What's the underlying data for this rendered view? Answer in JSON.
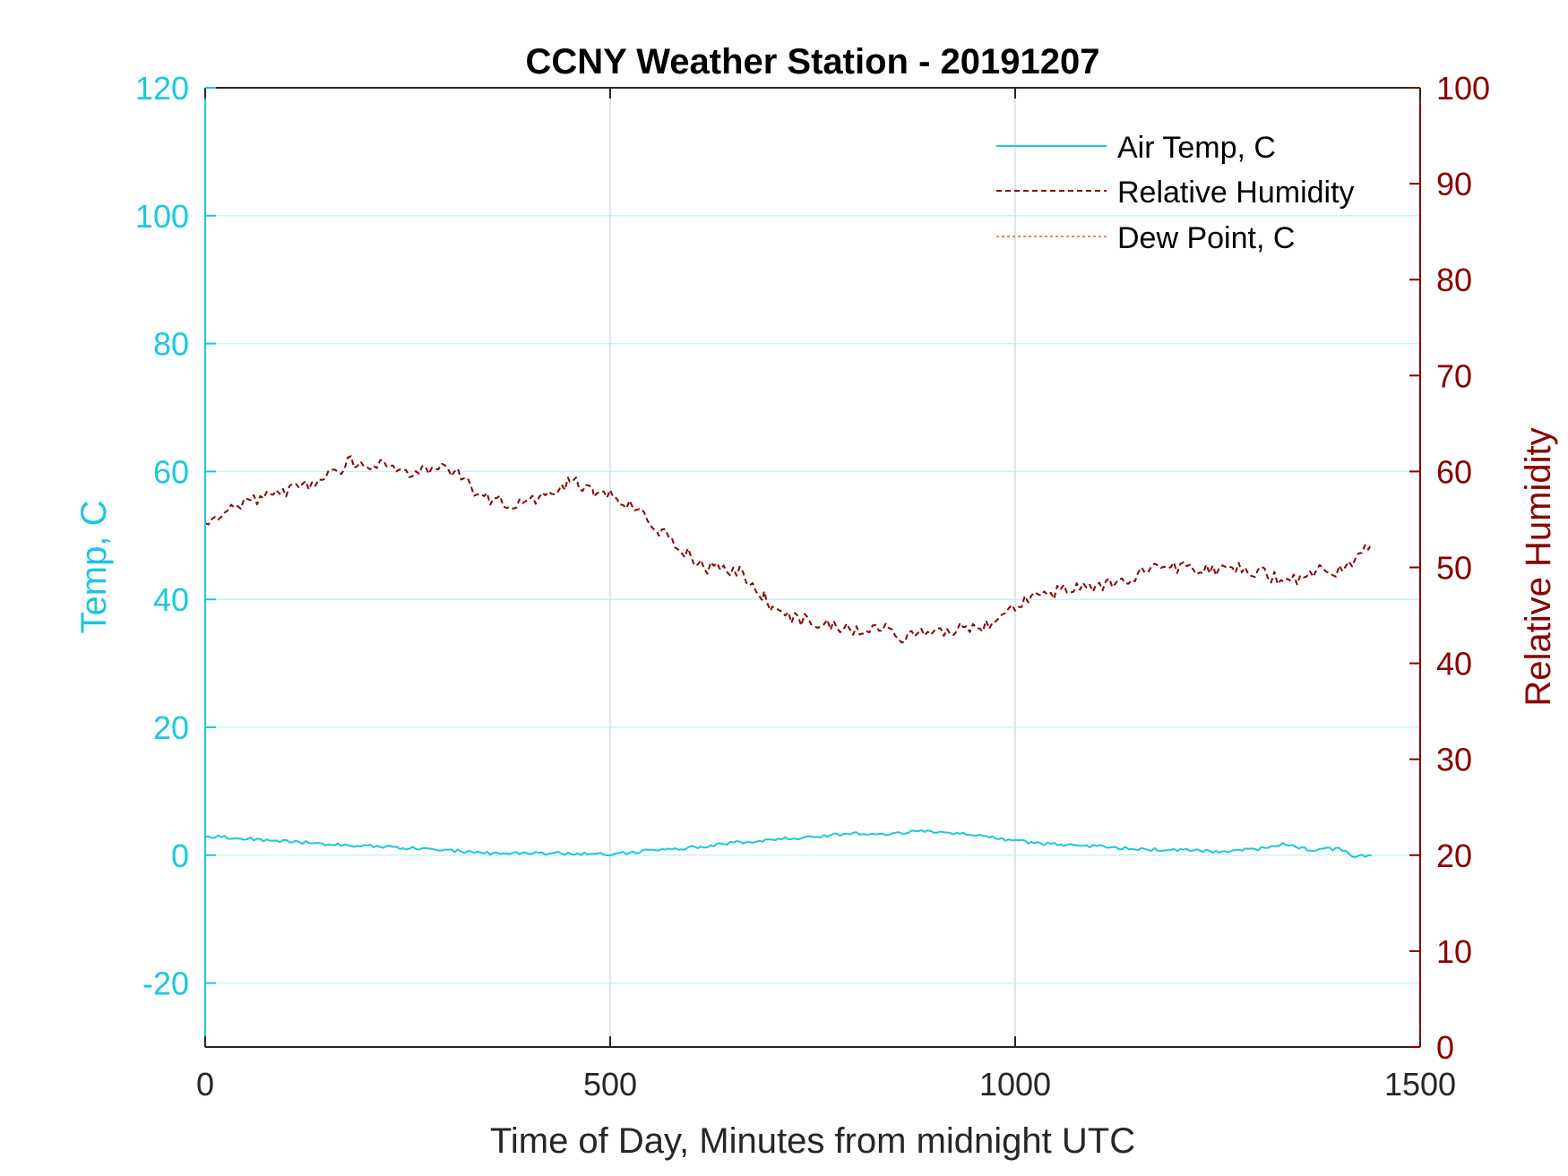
{
  "chart_data": {
    "type": "line",
    "title": "CCNY Weather Station - 20191207",
    "xlabel": "Time of Day, Minutes from midnight UTC",
    "ylabel_left": "Temp, C",
    "ylabel_right": "Relative Humidity",
    "xlim": [
      0,
      1500
    ],
    "ylim_left": [
      -30,
      120
    ],
    "ylim_right": [
      0,
      100
    ],
    "x_ticks": [
      "0",
      "500",
      "1000",
      "1500"
    ],
    "x_tick_values": [
      0,
      500,
      1000,
      1500
    ],
    "y_left_ticks": [
      "-20",
      "0",
      "20",
      "40",
      "60",
      "80",
      "100",
      "120"
    ],
    "y_left_tick_values": [
      -20,
      0,
      20,
      40,
      60,
      80,
      100,
      120
    ],
    "y_right_ticks": [
      "0",
      "10",
      "20",
      "30",
      "40",
      "50",
      "60",
      "70",
      "80",
      "90",
      "100"
    ],
    "y_right_tick_values": [
      0,
      10,
      20,
      30,
      40,
      50,
      60,
      70,
      80,
      90,
      100
    ],
    "grid": true,
    "legend_position": "top-right",
    "colors": {
      "air_temp": "#1cc7e0",
      "relative_humidity": "#8b0000",
      "dew_point": "#e8553e",
      "left_axis": "#1cc7e0",
      "right_axis": "#8b0000",
      "grid_x": "#d5dde6",
      "grid_y": "#cdf0f8"
    },
    "series": [
      {
        "name": "Air Temp, C",
        "axis": "left",
        "style": "solid",
        "x": [
          0,
          60,
          120,
          180,
          240,
          300,
          360,
          420,
          480,
          500,
          540,
          600,
          660,
          720,
          780,
          800,
          840,
          880,
          920,
          960,
          1000,
          1040,
          1100,
          1160,
          1200,
          1260,
          1300,
          1330,
          1360,
          1400,
          1420,
          1440
        ],
        "values": [
          3.0,
          2.5,
          2.0,
          1.5,
          1.2,
          0.8,
          0.2,
          0.3,
          0.2,
          0.1,
          0.6,
          1.2,
          2.0,
          2.6,
          3.2,
          3.5,
          3.3,
          3.8,
          3.5,
          3.0,
          2.2,
          1.8,
          1.4,
          0.9,
          0.8,
          0.5,
          1.0,
          1.8,
          0.9,
          1.0,
          -0.3,
          0.0
        ]
      },
      {
        "name": "Relative Humidity",
        "axis": "right",
        "style": "dashed",
        "x": [
          0,
          40,
          80,
          120,
          160,
          180,
          220,
          260,
          300,
          320,
          340,
          380,
          420,
          450,
          480,
          500,
          530,
          560,
          600,
          620,
          660,
          690,
          700,
          720,
          760,
          800,
          840,
          860,
          880,
          920,
          960,
          980,
          1000,
          1020,
          1060,
          1100,
          1140,
          1180,
          1220,
          1260,
          1280,
          1300,
          1320,
          1340,
          1360,
          1380,
          1400,
          1420,
          1440
        ],
        "values": [
          55,
          56.5,
          57.5,
          58.5,
          60,
          61,
          60.5,
          60,
          60.5,
          59,
          57.5,
          56.5,
          57.5,
          59,
          58,
          57.5,
          56,
          54,
          51,
          50,
          49.5,
          47,
          45.5,
          45,
          44,
          43.5,
          43.5,
          42.5,
          43,
          43.5,
          44,
          44.5,
          46,
          47,
          47.5,
          48,
          49,
          50,
          50,
          49.5,
          50,
          49.5,
          49,
          48.5,
          49,
          50,
          49.5,
          51,
          52.5
        ]
      },
      {
        "name": "Dew Point, C",
        "axis": "left",
        "style": "dotted",
        "x": [],
        "values": []
      }
    ]
  }
}
